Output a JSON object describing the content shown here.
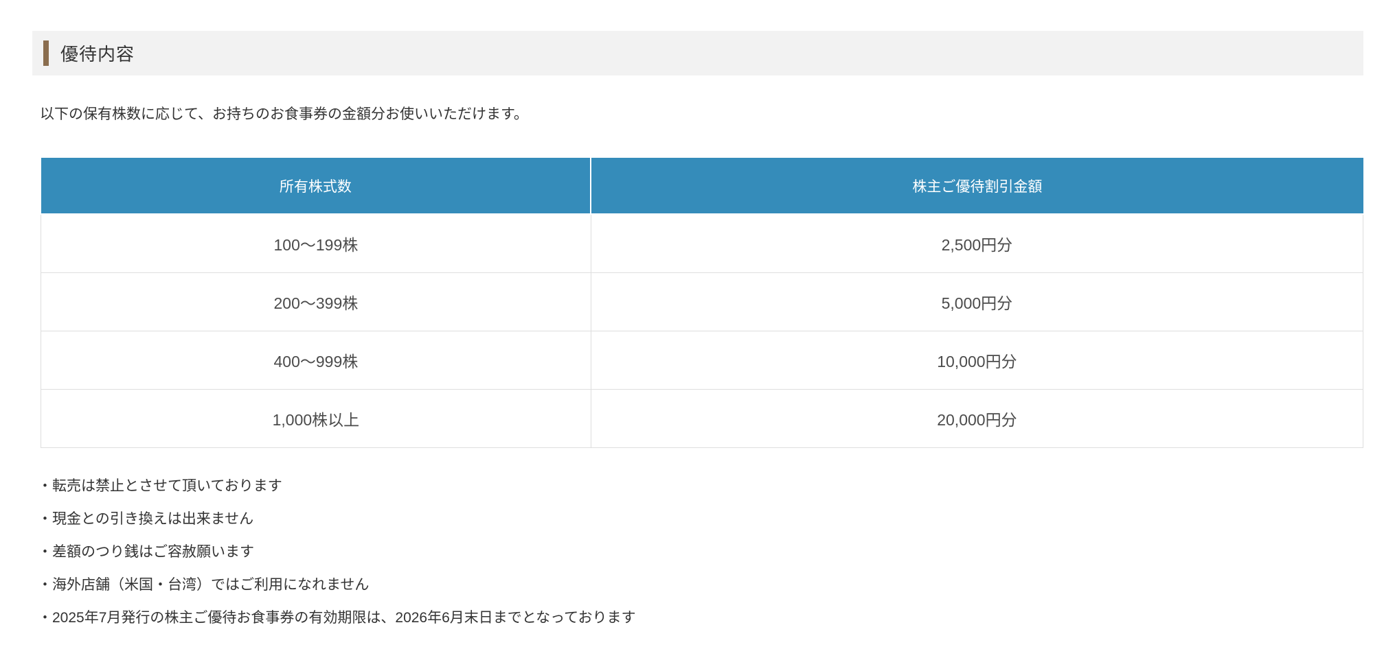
{
  "section": {
    "title": "優待内容"
  },
  "intro": "以下の保有株数に応じて、お持ちのお食事券の金額分お使いいただけます。",
  "table": {
    "headers": [
      "所有株式数",
      "株主ご優待割引金額"
    ],
    "rows": [
      [
        "100〜199株",
        "2,500円分"
      ],
      [
        "200〜399株",
        "5,000円分"
      ],
      [
        "400〜999株",
        "10,000円分"
      ],
      [
        "1,000株以上",
        "20,000円分"
      ]
    ]
  },
  "notes": [
    "・転売は禁止とさせて頂いております",
    "・現金との引き換えは出来ません",
    "・差額のつり銭はご容赦願います",
    "・海外店舗（米国・台湾）ではご利用になれません",
    "・2025年7月発行の株主ご優待お食事券の有効期限は、2026年6月末日までとなっております"
  ],
  "colors": {
    "table_header_bg": "#358cba",
    "table_header_text": "#ffffff",
    "accent_bar": "#8a6d4e",
    "section_header_bg": "#f2f2f2",
    "table_border": "#dedede",
    "body_text": "#333333",
    "cell_text": "#4b4b4b"
  }
}
